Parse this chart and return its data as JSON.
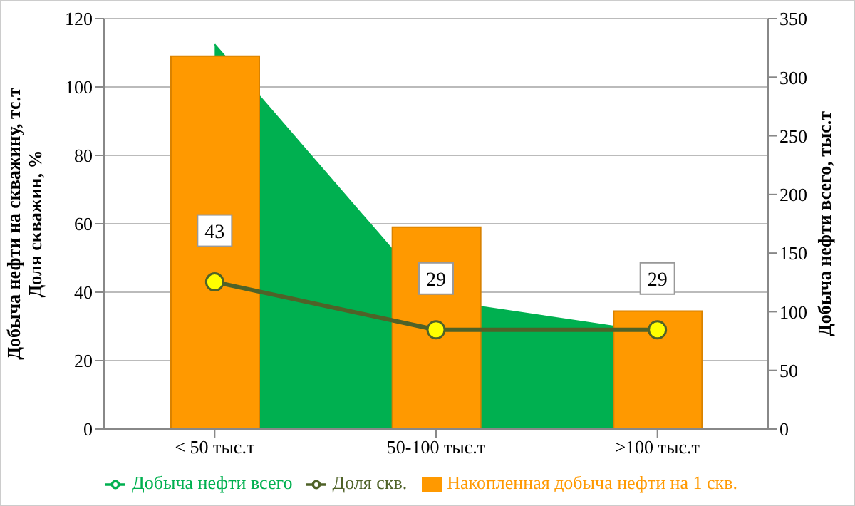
{
  "chart_data": {
    "type": "bar",
    "categories": [
      "< 50 тыс.т",
      "50-100 тыс.т",
      ">100 тыс.т"
    ],
    "ylabel": "Добыча нефти на скважину, тс.т\nДоля скважин, %",
    "y2label": "Добыча нефти всего, тыс.т",
    "ylim": [
      0,
      120
    ],
    "yticks": [
      0,
      20,
      40,
      60,
      80,
      100,
      120
    ],
    "y2lim": [
      0,
      350
    ],
    "y2ticks": [
      0,
      50,
      100,
      150,
      200,
      250,
      300,
      350
    ],
    "grid": "y",
    "legend": "bottom",
    "series": [
      {
        "name": "Добыча нефти всего",
        "type": "area",
        "axis": "y2",
        "color": "#00b050",
        "values": [
          328,
          110,
          82
        ]
      },
      {
        "name": "Накопленная добыча нефти на 1 скв.",
        "color": "#ff9900",
        "values": [
          109,
          59,
          34.5
        ]
      },
      {
        "name": "Доля скв.",
        "type": "line",
        "color": "#4f6228",
        "marker": "circle",
        "values": [
          43,
          29,
          29
        ],
        "value_labels": [
          "43",
          "29",
          "29"
        ]
      }
    ]
  }
}
